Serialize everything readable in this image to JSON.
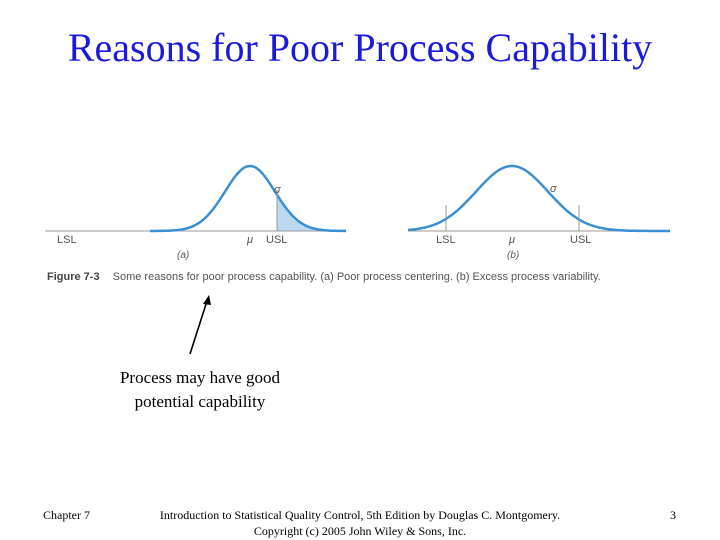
{
  "slide": {
    "title": "Reasons for Poor Process Capability"
  },
  "figure": {
    "panel_a": {
      "label": "(a)",
      "lsl": "LSL",
      "usl": "USL",
      "mu": "μ",
      "sigma": "σ"
    },
    "panel_b": {
      "label": "(b)",
      "lsl": "LSL",
      "usl": "USL",
      "mu": "μ",
      "sigma": "σ"
    },
    "caption_number": "Figure 7-3",
    "caption_text": "Some reasons for poor process capability. (a) Poor process centering. (b) Excess process variability.",
    "curve_color": "#3b8fd4",
    "tail_fill": "#bcd9f1"
  },
  "callout": {
    "line1": "Process may have good",
    "line2": "potential capability"
  },
  "footer": {
    "chapter": "Chapter 7",
    "citation_line1": "Introduction to Statistical Quality Control, 5th Edition by Douglas C. Montgomery.",
    "citation_line2": "Copyright (c) 2005 John Wiley & Sons, Inc.",
    "page_number": "3"
  }
}
